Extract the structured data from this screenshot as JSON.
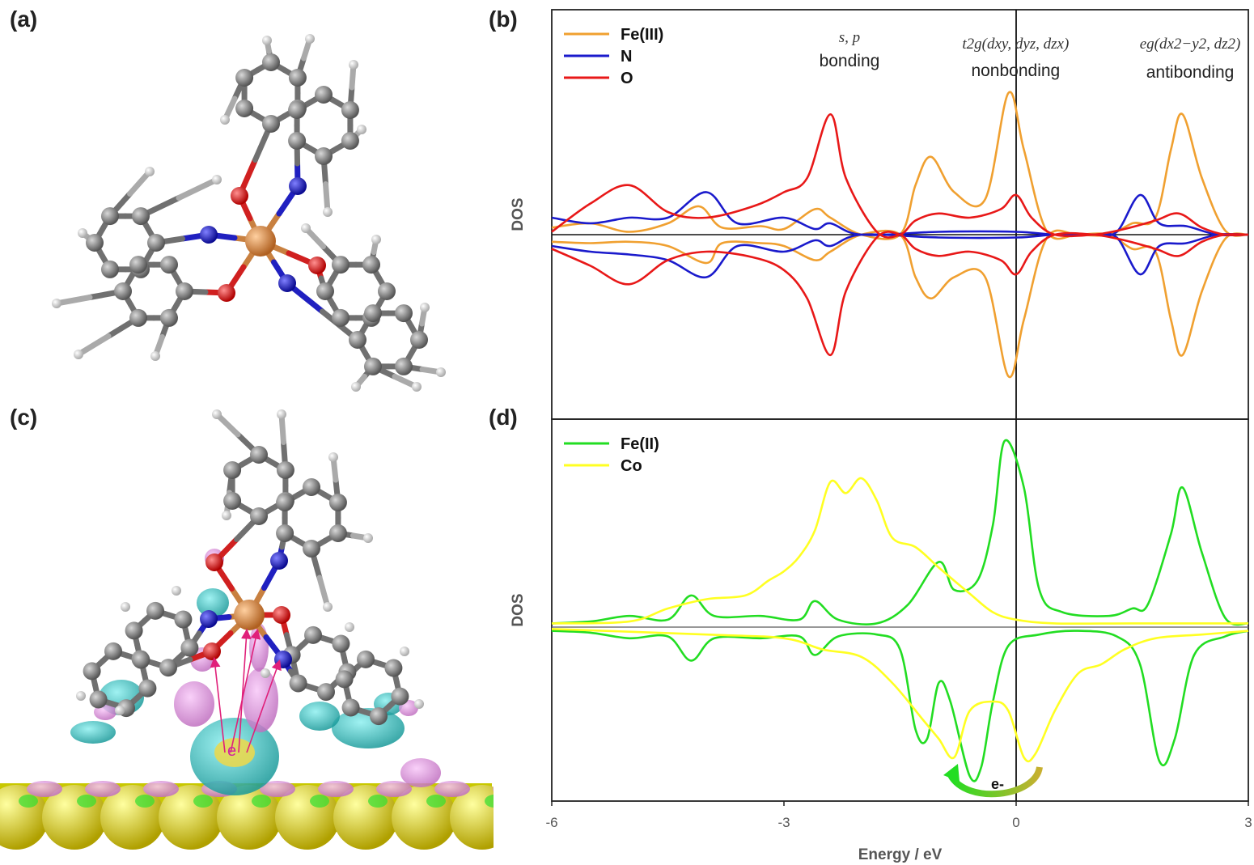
{
  "panels": {
    "a": "(a)",
    "b": "(b)",
    "c": "(c)",
    "d": "(d)"
  },
  "molecule_a": {
    "atoms": [
      "Fe",
      "O",
      "N",
      "C",
      "H"
    ]
  },
  "molecule_c": {
    "arrow_label": "e"
  },
  "colors": {
    "fe3": "#f0a030",
    "n": "#1a1acc",
    "o": "#e81818",
    "fe2": "#22dd22",
    "co": "#ffff22",
    "carbon": "#808080",
    "hydrogen": "#e8e8e8",
    "iron": "#d98a40",
    "iso_pos": "#2ec8c8",
    "iso_neg": "#e89ae8",
    "surface": "#e8e830"
  },
  "annotations_b": [
    {
      "id": "sp",
      "italic": "s, p",
      "plain": "bonding",
      "xc": -2.3
    },
    {
      "id": "t2g",
      "italic": "t2g(dxy, dyz, dzx)",
      "plain": "nonbonding",
      "xc": 0.15
    },
    {
      "id": "eg",
      "italic": "eg(dx2−y2, dz2)",
      "plain": "antibonding",
      "xc": 2.3
    }
  ],
  "transfer_label": "e-",
  "chart_data": [
    {
      "panel": "b",
      "type": "line",
      "ylabel": "DOS",
      "xlim": [
        -6,
        3
      ],
      "ylim": [
        -1.15,
        1.15
      ],
      "series": [
        {
          "name": "Fe(III)",
          "color": "#f0a030",
          "up": [
            [
              -6.0,
              0.05
            ],
            [
              -5.5,
              0.08
            ],
            [
              -5.0,
              0.02
            ],
            [
              -4.5,
              0.08
            ],
            [
              -4.1,
              0.2
            ],
            [
              -3.8,
              0.05
            ],
            [
              -3.3,
              0.06
            ],
            [
              -3.0,
              0.04
            ],
            [
              -2.6,
              0.18
            ],
            [
              -2.4,
              0.12
            ],
            [
              -2.0,
              0.0
            ],
            [
              -1.5,
              0.0
            ],
            [
              -1.3,
              0.35
            ],
            [
              -1.1,
              0.55
            ],
            [
              -0.8,
              0.3
            ],
            [
              -0.4,
              0.25
            ],
            [
              -0.1,
              1.0
            ],
            [
              0.1,
              0.6
            ],
            [
              0.4,
              0.02
            ],
            [
              0.8,
              0.0
            ],
            [
              1.2,
              0.0
            ],
            [
              1.5,
              0.08
            ],
            [
              1.8,
              0.12
            ],
            [
              2.0,
              0.6
            ],
            [
              2.15,
              0.85
            ],
            [
              2.4,
              0.4
            ],
            [
              2.7,
              0.03
            ],
            [
              3.0,
              0.0
            ]
          ],
          "down": [
            [
              -6.0,
              -0.05
            ],
            [
              -5.5,
              -0.06
            ],
            [
              -5.0,
              -0.05
            ],
            [
              -4.5,
              -0.08
            ],
            [
              -4.0,
              -0.2
            ],
            [
              -3.8,
              -0.06
            ],
            [
              -3.3,
              -0.06
            ],
            [
              -3.0,
              -0.08
            ],
            [
              -2.6,
              -0.18
            ],
            [
              -2.4,
              -0.12
            ],
            [
              -2.0,
              0.0
            ],
            [
              -1.5,
              0.0
            ],
            [
              -1.3,
              -0.3
            ],
            [
              -1.1,
              -0.45
            ],
            [
              -0.8,
              -0.3
            ],
            [
              -0.4,
              -0.3
            ],
            [
              -0.1,
              -1.0
            ],
            [
              0.1,
              -0.6
            ],
            [
              0.4,
              -0.02
            ],
            [
              0.8,
              0.0
            ],
            [
              1.2,
              0.0
            ],
            [
              1.5,
              -0.1
            ],
            [
              1.8,
              -0.12
            ],
            [
              2.0,
              -0.6
            ],
            [
              2.15,
              -0.85
            ],
            [
              2.4,
              -0.4
            ],
            [
              2.7,
              -0.03
            ],
            [
              3.0,
              0.0
            ]
          ]
        },
        {
          "name": "N",
          "color": "#1a1acc",
          "up": [
            [
              -6.0,
              0.12
            ],
            [
              -5.5,
              0.08
            ],
            [
              -5.0,
              0.12
            ],
            [
              -4.5,
              0.12
            ],
            [
              -4.0,
              0.3
            ],
            [
              -3.6,
              0.08
            ],
            [
              -3.0,
              0.12
            ],
            [
              -2.6,
              0.04
            ],
            [
              -2.4,
              0.08
            ],
            [
              -2.0,
              0.0
            ],
            [
              -1.0,
              0.02
            ],
            [
              0.0,
              0.02
            ],
            [
              0.5,
              0.0
            ],
            [
              1.0,
              0.0
            ],
            [
              1.3,
              0.02
            ],
            [
              1.6,
              0.28
            ],
            [
              1.85,
              0.08
            ],
            [
              2.2,
              0.06
            ],
            [
              2.6,
              0.0
            ],
            [
              3.0,
              0.0
            ]
          ],
          "down": [
            [
              -6.0,
              -0.08
            ],
            [
              -5.5,
              -0.12
            ],
            [
              -5.0,
              -0.14
            ],
            [
              -4.5,
              -0.18
            ],
            [
              -4.0,
              -0.3
            ],
            [
              -3.6,
              -0.08
            ],
            [
              -3.0,
              -0.12
            ],
            [
              -2.6,
              -0.04
            ],
            [
              -2.4,
              -0.08
            ],
            [
              -2.0,
              0.0
            ],
            [
              -1.0,
              -0.02
            ],
            [
              0.0,
              -0.02
            ],
            [
              0.5,
              0.0
            ],
            [
              1.0,
              0.0
            ],
            [
              1.3,
              -0.02
            ],
            [
              1.6,
              -0.28
            ],
            [
              1.85,
              -0.08
            ],
            [
              2.2,
              -0.06
            ],
            [
              2.6,
              0.0
            ],
            [
              3.0,
              0.0
            ]
          ]
        },
        {
          "name": "O",
          "color": "#e81818",
          "up": [
            [
              -6.0,
              0.02
            ],
            [
              -5.5,
              0.22
            ],
            [
              -5.0,
              0.35
            ],
            [
              -4.5,
              0.16
            ],
            [
              -4.0,
              0.12
            ],
            [
              -3.4,
              0.2
            ],
            [
              -3.0,
              0.3
            ],
            [
              -2.7,
              0.4
            ],
            [
              -2.4,
              0.85
            ],
            [
              -2.2,
              0.4
            ],
            [
              -1.8,
              0.02
            ],
            [
              -1.5,
              0.0
            ],
            [
              -1.3,
              0.1
            ],
            [
              -1.0,
              0.15
            ],
            [
              -0.6,
              0.12
            ],
            [
              -0.2,
              0.18
            ],
            [
              0.0,
              0.28
            ],
            [
              0.2,
              0.12
            ],
            [
              0.5,
              0.0
            ],
            [
              1.0,
              0.0
            ],
            [
              1.4,
              0.04
            ],
            [
              1.8,
              0.1
            ],
            [
              2.1,
              0.15
            ],
            [
              2.4,
              0.05
            ],
            [
              2.7,
              0.0
            ],
            [
              3.0,
              0.0
            ]
          ],
          "down": [
            [
              -6.0,
              -0.1
            ],
            [
              -5.5,
              -0.22
            ],
            [
              -5.0,
              -0.35
            ],
            [
              -4.5,
              -0.18
            ],
            [
              -4.0,
              -0.12
            ],
            [
              -3.4,
              -0.16
            ],
            [
              -3.0,
              -0.25
            ],
            [
              -2.7,
              -0.45
            ],
            [
              -2.4,
              -0.85
            ],
            [
              -2.2,
              -0.4
            ],
            [
              -1.8,
              -0.02
            ],
            [
              -1.5,
              0.0
            ],
            [
              -1.3,
              -0.1
            ],
            [
              -1.0,
              -0.15
            ],
            [
              -0.6,
              -0.12
            ],
            [
              -0.2,
              -0.18
            ],
            [
              0.0,
              -0.28
            ],
            [
              0.2,
              -0.12
            ],
            [
              0.5,
              0.0
            ],
            [
              1.0,
              0.0
            ],
            [
              1.4,
              -0.04
            ],
            [
              1.8,
              -0.1
            ],
            [
              2.1,
              -0.15
            ],
            [
              2.4,
              -0.05
            ],
            [
              2.7,
              0.0
            ],
            [
              3.0,
              0.0
            ]
          ]
        }
      ]
    },
    {
      "panel": "d",
      "type": "line",
      "ylabel": "DOS",
      "xlabel": "Energy / eV",
      "xlim": [
        -6,
        3
      ],
      "xticks": [
        "-6",
        "-3",
        "0",
        "3"
      ],
      "ylim": [
        -1.15,
        1.15
      ],
      "series": [
        {
          "name": "Fe(II)",
          "color": "#22dd22",
          "up": [
            [
              -6.0,
              0.02
            ],
            [
              -5.5,
              0.03
            ],
            [
              -5.0,
              0.06
            ],
            [
              -4.5,
              0.04
            ],
            [
              -4.2,
              0.17
            ],
            [
              -3.9,
              0.06
            ],
            [
              -3.3,
              0.06
            ],
            [
              -2.8,
              0.04
            ],
            [
              -2.6,
              0.14
            ],
            [
              -2.3,
              0.04
            ],
            [
              -1.8,
              0.02
            ],
            [
              -1.4,
              0.12
            ],
            [
              -1.0,
              0.35
            ],
            [
              -0.8,
              0.2
            ],
            [
              -0.5,
              0.25
            ],
            [
              -0.3,
              0.55
            ],
            [
              -0.15,
              1.0
            ],
            [
              0.1,
              0.75
            ],
            [
              0.3,
              0.2
            ],
            [
              0.6,
              0.08
            ],
            [
              1.2,
              0.06
            ],
            [
              1.5,
              0.1
            ],
            [
              1.7,
              0.12
            ],
            [
              2.0,
              0.5
            ],
            [
              2.15,
              0.75
            ],
            [
              2.4,
              0.4
            ],
            [
              2.7,
              0.05
            ],
            [
              3.0,
              0.02
            ]
          ],
          "down": [
            [
              -6.0,
              -0.02
            ],
            [
              -5.5,
              -0.03
            ],
            [
              -5.0,
              -0.06
            ],
            [
              -4.5,
              -0.05
            ],
            [
              -4.2,
              -0.18
            ],
            [
              -3.9,
              -0.06
            ],
            [
              -3.3,
              -0.06
            ],
            [
              -2.8,
              -0.05
            ],
            [
              -2.6,
              -0.15
            ],
            [
              -2.3,
              -0.05
            ],
            [
              -1.8,
              -0.04
            ],
            [
              -1.5,
              -0.12
            ],
            [
              -1.3,
              -0.55
            ],
            [
              -1.15,
              -0.6
            ],
            [
              -1.0,
              -0.3
            ],
            [
              -0.85,
              -0.4
            ],
            [
              -0.6,
              -0.8
            ],
            [
              -0.45,
              -0.75
            ],
            [
              -0.3,
              -0.4
            ],
            [
              -0.1,
              -0.1
            ],
            [
              0.3,
              -0.04
            ],
            [
              0.8,
              -0.02
            ],
            [
              1.3,
              -0.05
            ],
            [
              1.6,
              -0.2
            ],
            [
              1.85,
              -0.72
            ],
            [
              2.05,
              -0.6
            ],
            [
              2.3,
              -0.15
            ],
            [
              2.7,
              -0.05
            ],
            [
              3.0,
              -0.02
            ]
          ]
        },
        {
          "name": "Co",
          "color": "#ffff22",
          "up": [
            [
              -6.0,
              0.02
            ],
            [
              -5.0,
              0.03
            ],
            [
              -4.5,
              0.1
            ],
            [
              -4.0,
              0.15
            ],
            [
              -3.5,
              0.17
            ],
            [
              -3.2,
              0.25
            ],
            [
              -3.0,
              0.3
            ],
            [
              -2.8,
              0.38
            ],
            [
              -2.6,
              0.52
            ],
            [
              -2.4,
              0.78
            ],
            [
              -2.2,
              0.72
            ],
            [
              -2.0,
              0.8
            ],
            [
              -1.8,
              0.68
            ],
            [
              -1.6,
              0.48
            ],
            [
              -1.3,
              0.43
            ],
            [
              -1.0,
              0.32
            ],
            [
              -0.6,
              0.18
            ],
            [
              -0.3,
              0.08
            ],
            [
              0.0,
              0.04
            ],
            [
              0.5,
              0.02
            ],
            [
              1.5,
              0.02
            ],
            [
              3.0,
              0.02
            ]
          ],
          "down": [
            [
              -6.0,
              -0.01
            ],
            [
              -4.0,
              -0.04
            ],
            [
              -3.0,
              -0.06
            ],
            [
              -2.5,
              -0.12
            ],
            [
              -2.0,
              -0.16
            ],
            [
              -1.6,
              -0.3
            ],
            [
              -1.2,
              -0.5
            ],
            [
              -1.0,
              -0.6
            ],
            [
              -0.8,
              -0.7
            ],
            [
              -0.6,
              -0.45
            ],
            [
              -0.3,
              -0.4
            ],
            [
              -0.1,
              -0.45
            ],
            [
              0.1,
              -0.7
            ],
            [
              0.25,
              -0.68
            ],
            [
              0.5,
              -0.45
            ],
            [
              0.8,
              -0.25
            ],
            [
              1.1,
              -0.2
            ],
            [
              1.4,
              -0.12
            ],
            [
              1.8,
              -0.06
            ],
            [
              2.4,
              -0.04
            ],
            [
              3.0,
              -0.02
            ]
          ]
        }
      ]
    }
  ]
}
